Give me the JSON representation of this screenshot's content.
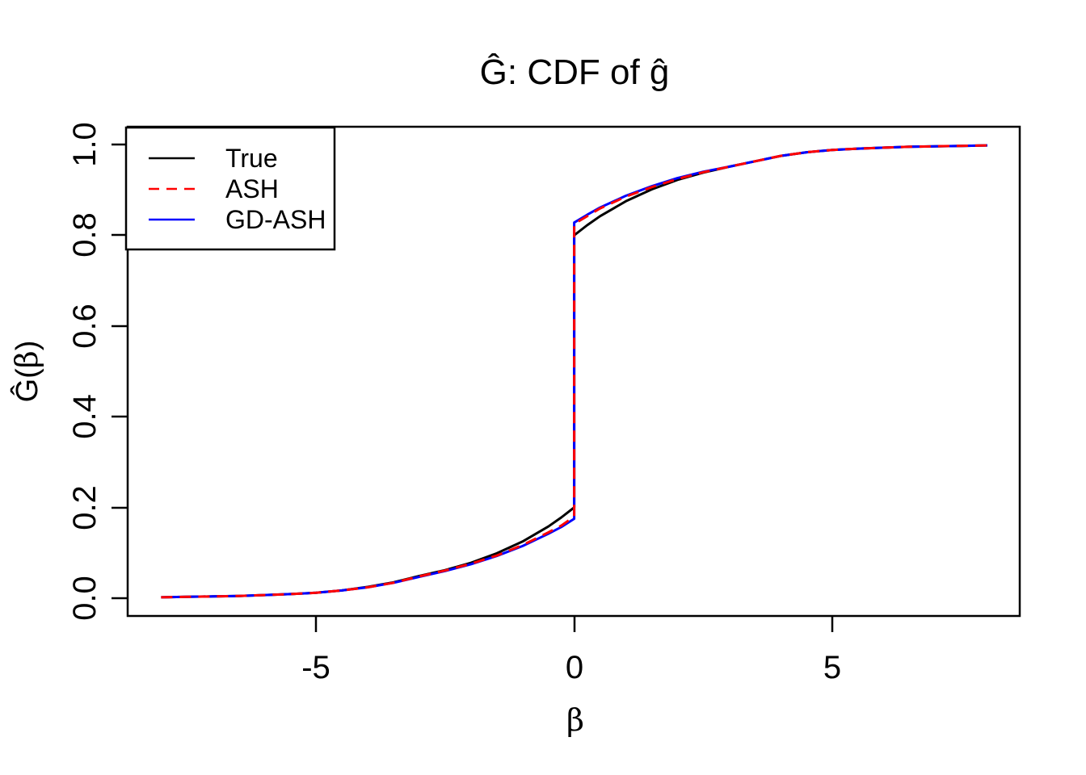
{
  "title": "Ĝ: CDF of ĝ",
  "background_color": "#FFFFFF",
  "axes": {
    "xlabel": "β",
    "ylabel_pre": "Ĝ(",
    "ylabel_beta": "β",
    "ylabel_post": ")",
    "x_tick_labels": [
      "-5",
      "0",
      "5"
    ],
    "y_tick_labels": [
      "0.0",
      "0.2",
      "0.4",
      "0.6",
      "0.8",
      "1.0"
    ]
  },
  "legend": {
    "items": [
      {
        "label": "True",
        "color": "#000000",
        "dash": "solid"
      },
      {
        "label": "ASH",
        "color": "#FF0000",
        "dash": "dashed"
      },
      {
        "label": "GD-ASH",
        "color": "#0000FF",
        "dash": "solid"
      }
    ]
  },
  "chart_data": {
    "type": "line",
    "title": "Ĝ: CDF of ĝ",
    "xlabel": "β",
    "ylabel": "Ĝ(β)",
    "xlim": [
      -8.64,
      8.64
    ],
    "ylim": [
      -0.04,
      1.04
    ],
    "x_ticks": [
      -5,
      0,
      5
    ],
    "y_ticks": [
      0.0,
      0.2,
      0.4,
      0.6,
      0.8,
      1.0
    ],
    "grid": false,
    "legend_position": "topleft",
    "description": "Three step-CDF curves with a jump discontinuity at beta = 0 (point mass at zero). True jumps from 0.20 to 0.80; ASH and GD-ASH jump from about 0.175-0.18 to about 0.825-0.83, nearly overlapping each other, merging with True in both tails.",
    "series": [
      {
        "name": "true",
        "label": "True",
        "color": "#000000",
        "dash": "solid",
        "points": [
          [
            -8,
            0.002
          ],
          [
            -7.5,
            0.003
          ],
          [
            -7,
            0.004
          ],
          [
            -6.5,
            0.005
          ],
          [
            -6,
            0.007
          ],
          [
            -5.5,
            0.009
          ],
          [
            -5,
            0.012
          ],
          [
            -4.5,
            0.017
          ],
          [
            -4,
            0.025
          ],
          [
            -3.5,
            0.035
          ],
          [
            -3,
            0.049
          ],
          [
            -2.5,
            0.062
          ],
          [
            -2,
            0.078
          ],
          [
            -1.5,
            0.099
          ],
          [
            -1,
            0.125
          ],
          [
            -0.5,
            0.158
          ],
          [
            -0.25,
            0.178
          ],
          [
            0,
            0.2
          ],
          [
            0,
            0.8
          ],
          [
            0.25,
            0.822
          ],
          [
            0.5,
            0.842
          ],
          [
            1,
            0.875
          ],
          [
            1.5,
            0.901
          ],
          [
            2,
            0.922
          ],
          [
            2.5,
            0.938
          ],
          [
            3,
            0.951
          ],
          [
            3.5,
            0.963
          ],
          [
            4,
            0.975
          ],
          [
            4.5,
            0.983
          ],
          [
            5,
            0.988
          ],
          [
            5.5,
            0.991
          ],
          [
            6,
            0.993
          ],
          [
            6.5,
            0.995
          ],
          [
            7,
            0.996
          ],
          [
            7.5,
            0.997
          ],
          [
            8,
            0.998
          ]
        ]
      },
      {
        "name": "gdash",
        "label": "GD-ASH",
        "color": "#0000FF",
        "dash": "solid",
        "points": [
          [
            -8,
            0.002
          ],
          [
            -7.5,
            0.003
          ],
          [
            -7,
            0.004
          ],
          [
            -6.5,
            0.005
          ],
          [
            -6,
            0.007
          ],
          [
            -5.5,
            0.009
          ],
          [
            -5,
            0.012
          ],
          [
            -4.5,
            0.017
          ],
          [
            -4,
            0.024
          ],
          [
            -3.5,
            0.034
          ],
          [
            -3,
            0.047
          ],
          [
            -2.5,
            0.06
          ],
          [
            -2,
            0.075
          ],
          [
            -1.5,
            0.093
          ],
          [
            -1,
            0.115
          ],
          [
            -0.5,
            0.142
          ],
          [
            -0.25,
            0.157
          ],
          [
            0,
            0.175
          ],
          [
            0,
            0.828
          ],
          [
            0.25,
            0.845
          ],
          [
            0.5,
            0.861
          ],
          [
            1,
            0.887
          ],
          [
            1.5,
            0.908
          ],
          [
            2,
            0.926
          ],
          [
            2.5,
            0.94
          ],
          [
            3,
            0.951
          ],
          [
            3.5,
            0.963
          ],
          [
            4,
            0.975
          ],
          [
            4.5,
            0.983
          ],
          [
            5,
            0.988
          ],
          [
            5.5,
            0.991
          ],
          [
            6,
            0.993
          ],
          [
            6.5,
            0.995
          ],
          [
            7,
            0.996
          ],
          [
            7.5,
            0.997
          ],
          [
            8,
            0.998
          ]
        ]
      },
      {
        "name": "ash",
        "label": "ASH",
        "color": "#FF0000",
        "dash": "dashed",
        "points": [
          [
            -8,
            0.002
          ],
          [
            -7.5,
            0.003
          ],
          [
            -7,
            0.004
          ],
          [
            -6.5,
            0.005
          ],
          [
            -6,
            0.007
          ],
          [
            -5.5,
            0.009
          ],
          [
            -5,
            0.012
          ],
          [
            -4.5,
            0.017
          ],
          [
            -4,
            0.024
          ],
          [
            -3.5,
            0.034
          ],
          [
            -3,
            0.048
          ],
          [
            -2.5,
            0.061
          ],
          [
            -2,
            0.076
          ],
          [
            -1.5,
            0.094
          ],
          [
            -1,
            0.117
          ],
          [
            -0.5,
            0.145
          ],
          [
            -0.25,
            0.16
          ],
          [
            0,
            0.18
          ],
          [
            0,
            0.825
          ],
          [
            0.25,
            0.842
          ],
          [
            0.5,
            0.859
          ],
          [
            1,
            0.885
          ],
          [
            1.5,
            0.906
          ],
          [
            2,
            0.924
          ],
          [
            2.5,
            0.939
          ],
          [
            3,
            0.951
          ],
          [
            3.5,
            0.963
          ],
          [
            4,
            0.975
          ],
          [
            4.5,
            0.983
          ],
          [
            5,
            0.988
          ],
          [
            5.5,
            0.991
          ],
          [
            6,
            0.993
          ],
          [
            6.5,
            0.995
          ],
          [
            7,
            0.996
          ],
          [
            7.5,
            0.997
          ],
          [
            8,
            0.998
          ]
        ]
      }
    ]
  }
}
